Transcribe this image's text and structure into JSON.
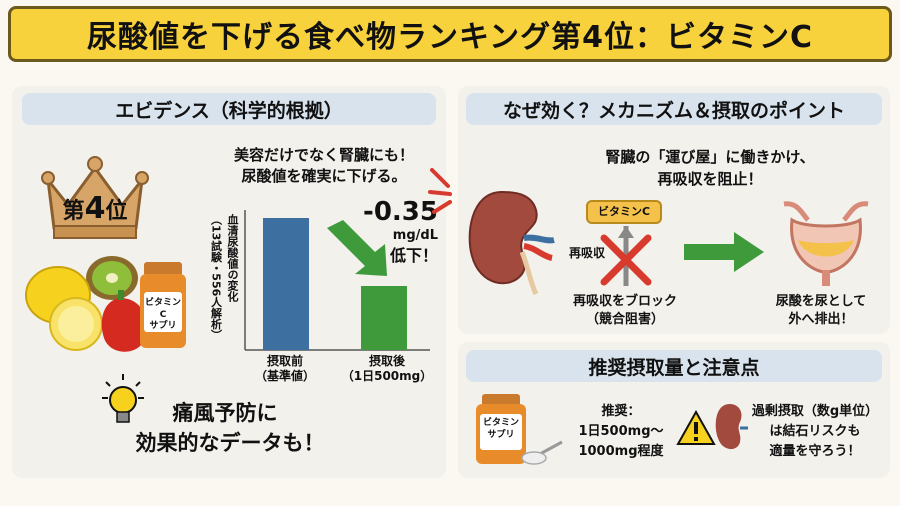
{
  "title": "尿酸値を下げる食べ物ランキング第4位：ビタミンC",
  "left": {
    "header": "エビデンス（科学的根拠）",
    "rank": {
      "prefix": "第",
      "number": "4",
      "suffix": "位"
    },
    "bottle_label": "ビタミンC\nサプリ",
    "claim_line1": "美容だけでなく腎臓にも！",
    "claim_line2": "尿酸値を確実に下げる。",
    "chart_ylabel": "血清尿酸値の変化\n（13試験・556人解析）",
    "effect_value": "-0.35",
    "effect_unit": "mg/dL",
    "effect_word": "低下！",
    "gout_line1": "痛風予防に",
    "gout_line2": "効果的なデータも！"
  },
  "chart_data": {
    "type": "bar",
    "categories": [
      "摂取前\n（基準値）",
      "摂取後\n（1日500mg）"
    ],
    "values": [
      null,
      null
    ],
    "colors": [
      "#3d6fa0",
      "#3f9a3c"
    ],
    "annotation": "-0.35 mg/dL 低下！"
  },
  "right": {
    "header": "なぜ効く？メカニズム＆摂取のポイント",
    "mech_line1": "腎臓の「運び屋」に働きかけ、",
    "mech_line2": "再吸収を阻止！",
    "vitc_tag": "ビタミンC",
    "reabsorb_label": "再吸収",
    "block_line1": "再吸収をブロック",
    "block_line2": "（競合阻害）",
    "excrete_line1": "尿酸を尿として",
    "excrete_line2": "外へ排出！",
    "dose_header": "推奨摂取量と注意点",
    "dose_bottle": "ビタミン\nサプリ",
    "dose_line1": "推奨：",
    "dose_line2": "1日500mg〜",
    "dose_line3": "1000mg程度",
    "warn_line1": "過剰摂取（数g単位）",
    "warn_line2": "は結石リスクも",
    "warn_line3": "適量を守ろう！"
  },
  "colors": {
    "title_bg": "#f8d23c",
    "bar_before": "#3d6fa0",
    "bar_after": "#3f9a3c",
    "x_mark": "#d93a2e",
    "header_bg": "#d9e3ee"
  }
}
